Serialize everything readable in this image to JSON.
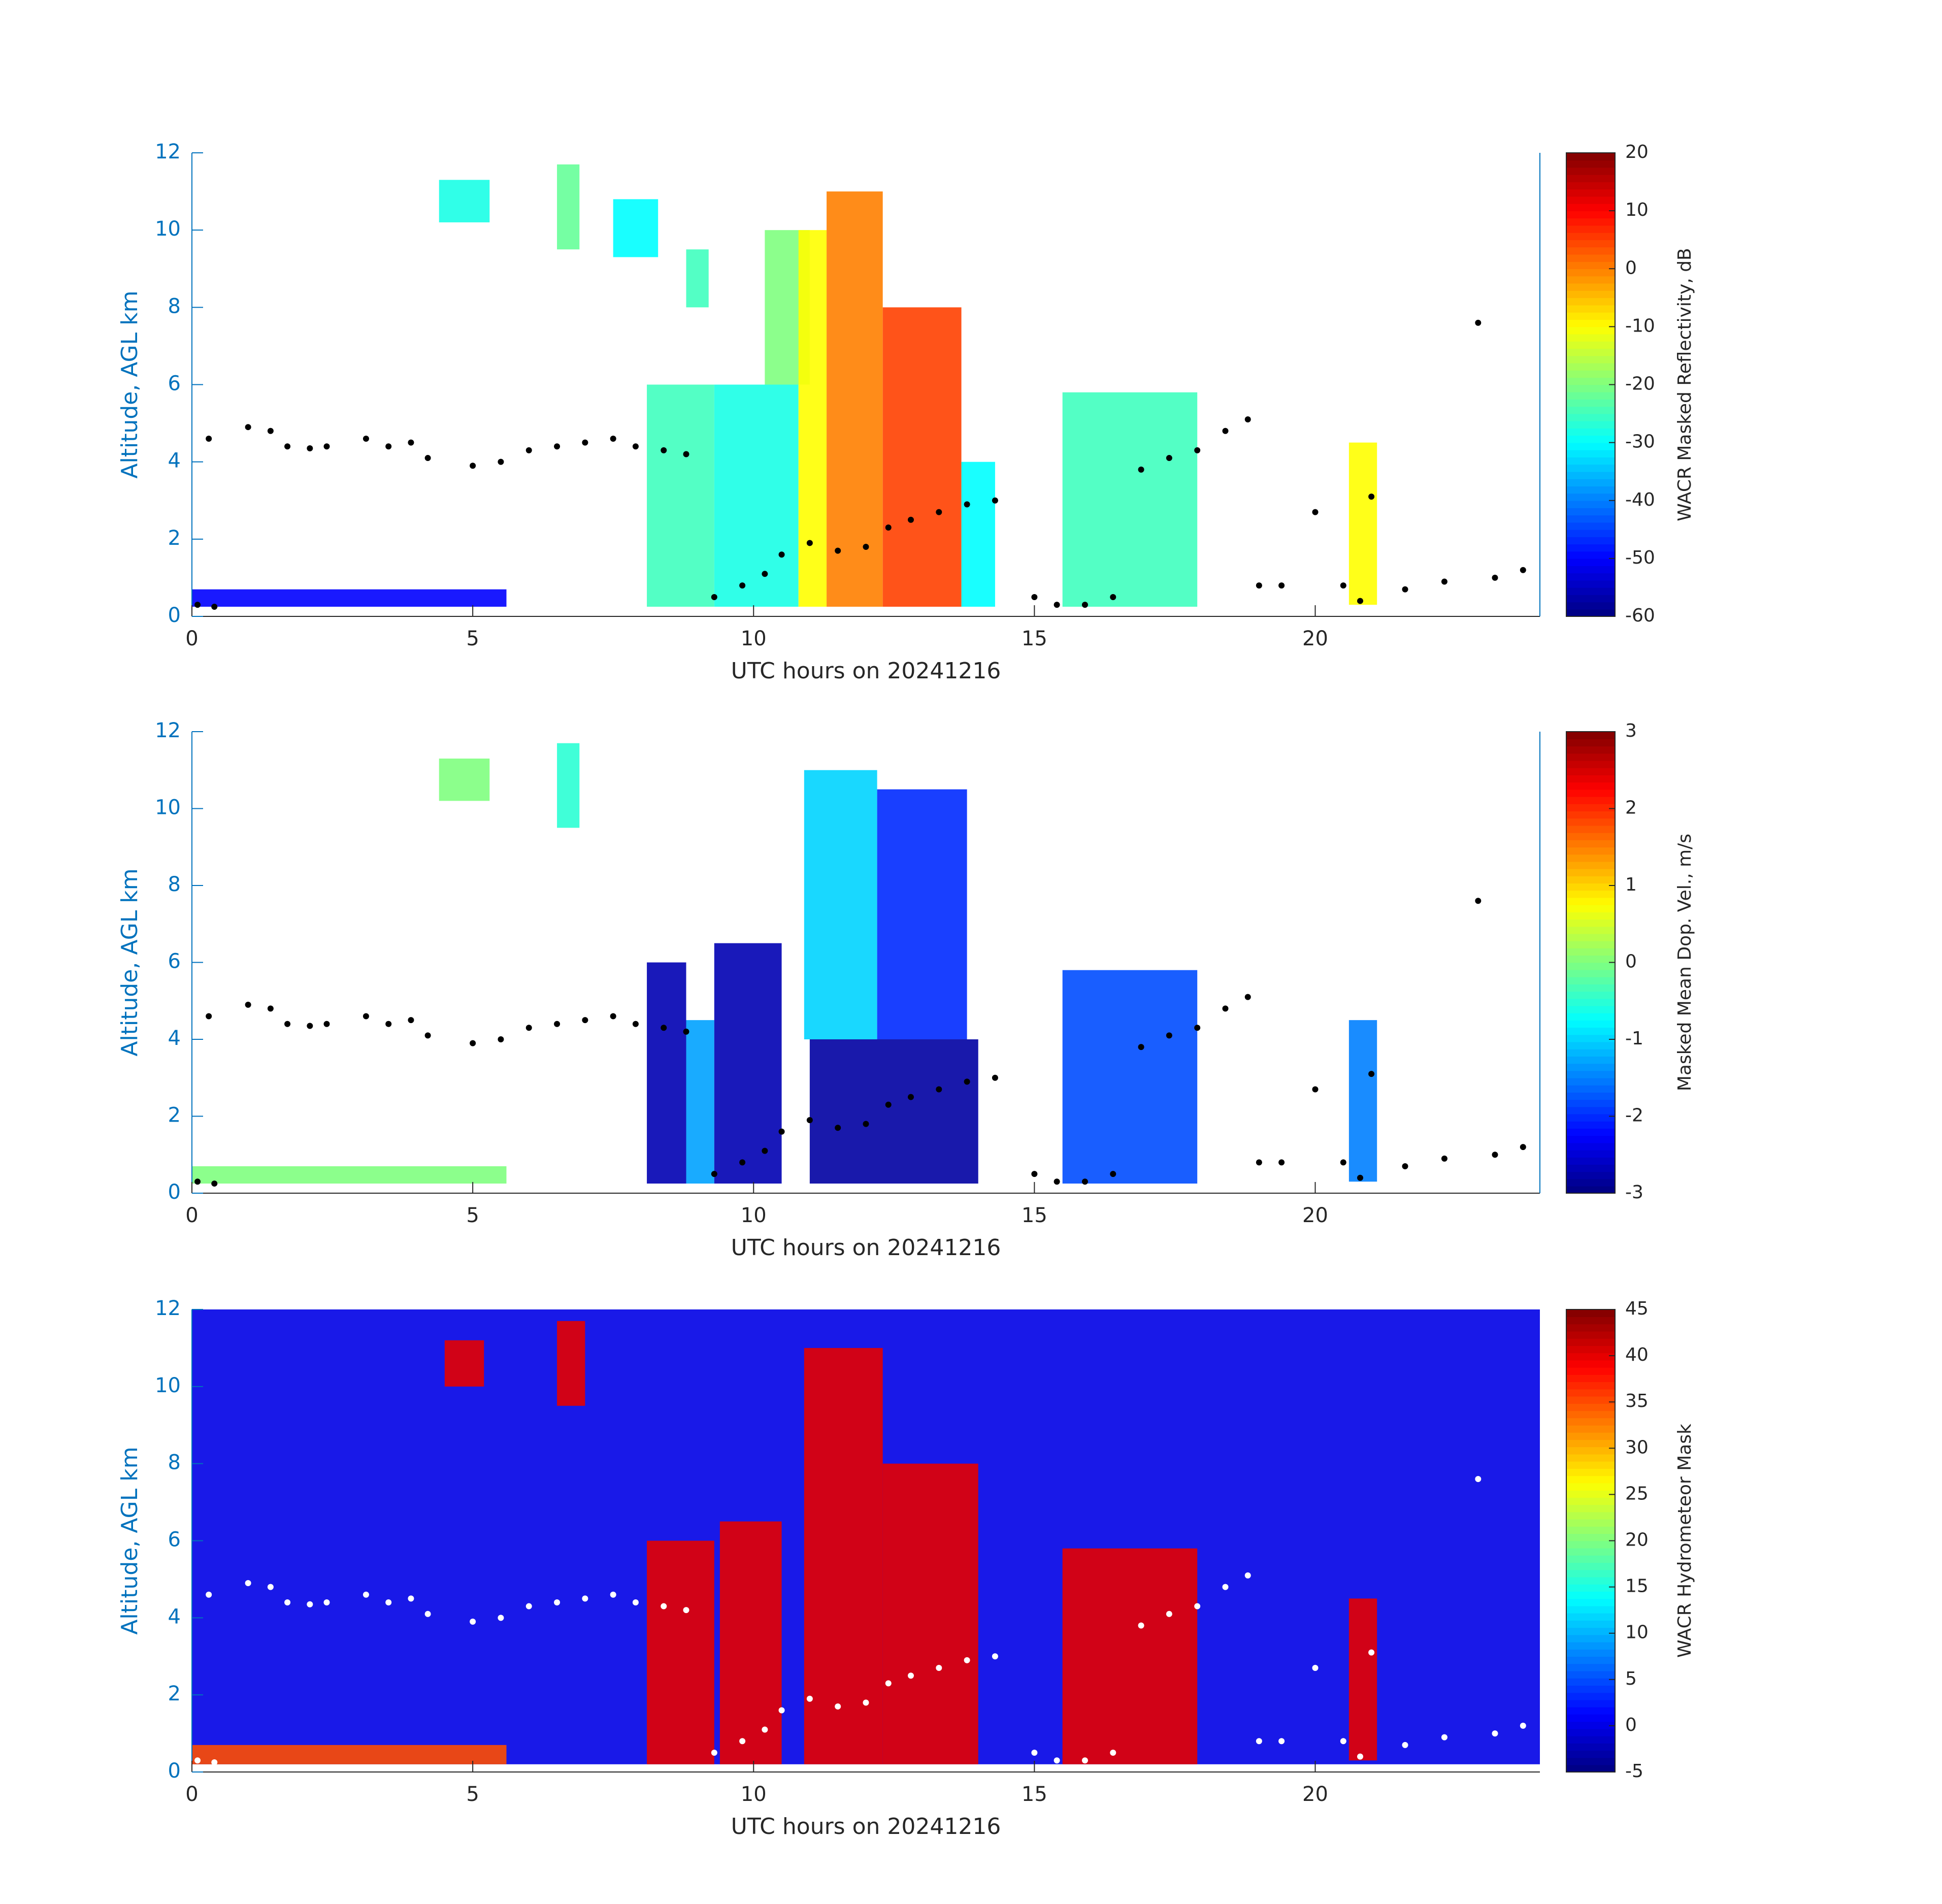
{
  "chart_data": [
    {
      "type": "heatmap",
      "colormap": "jet",
      "xlabel": "UTC hours on 20241216",
      "ylabel": "Altitude, AGL km",
      "clabel": "WACR Masked Reflectivity, dB",
      "xlim": [
        0,
        24
      ],
      "ylim": [
        0,
        12
      ],
      "xticks": [
        0,
        5,
        10,
        15,
        20
      ],
      "yticks": [
        0,
        2,
        4,
        6,
        8,
        10,
        12
      ],
      "clim": [
        -60,
        20
      ],
      "cticks": [
        -60,
        -50,
        -40,
        -30,
        -20,
        -10,
        0,
        10,
        20
      ],
      "y_axis_color": "#0072bd",
      "right_axis": true,
      "cells": [
        {
          "x": [
            0,
            5.6
          ],
          "y": [
            0.25,
            0.7
          ],
          "value": -50
        },
        {
          "x": [
            4.4,
            5.3
          ],
          "y": [
            10.2,
            11.3
          ],
          "value": -28
        },
        {
          "x": [
            6.5,
            6.9
          ],
          "y": [
            9.5,
            11.7
          ],
          "value": -22
        },
        {
          "x": [
            7.5,
            8.3
          ],
          "y": [
            9.3,
            10.8
          ],
          "value": -30
        },
        {
          "x": [
            8.8,
            9.2
          ],
          "y": [
            8,
            9.5
          ],
          "value": -25
        },
        {
          "x": [
            8.1,
            9.3
          ],
          "y": [
            0.25,
            6
          ],
          "value": -25
        },
        {
          "x": [
            9.3,
            10.8
          ],
          "y": [
            0.25,
            6
          ],
          "value": -28
        },
        {
          "x": [
            10.2,
            11
          ],
          "y": [
            6,
            10
          ],
          "value": -20
        },
        {
          "x": [
            10.8,
            11.3
          ],
          "y": [
            0.25,
            10
          ],
          "value": -10
        },
        {
          "x": [
            11.3,
            12.3
          ],
          "y": [
            0.25,
            11
          ],
          "value": 0
        },
        {
          "x": [
            12.3,
            13.7
          ],
          "y": [
            0.25,
            8
          ],
          "value": 5
        },
        {
          "x": [
            13.7,
            14.3
          ],
          "y": [
            0.25,
            4
          ],
          "value": -30
        },
        {
          "x": [
            15.5,
            17.9
          ],
          "y": [
            0.25,
            5.8
          ],
          "value": -25
        },
        {
          "x": [
            20.6,
            21.1
          ],
          "y": [
            0.3,
            4.5
          ],
          "value": -10
        }
      ],
      "points": {
        "color": "#000000",
        "x": [
          0.1,
          0.4,
          0.3,
          1,
          1.4,
          1.7,
          2.1,
          2.4,
          3.1,
          3.5,
          3.9,
          4.2,
          5,
          5.5,
          6,
          6.5,
          7,
          7.5,
          7.9,
          8.4,
          8.8,
          9.3,
          9.8,
          10.2,
          10.5,
          11,
          11.5,
          12,
          12.4,
          12.8,
          13.3,
          13.8,
          14.3,
          15,
          15.4,
          15.9,
          16.4,
          16.9,
          17.4,
          17.9,
          18.4,
          18.8,
          19,
          19.4,
          20,
          20.5,
          20.8,
          21,
          21.6,
          22.3,
          22.9,
          23.2,
          23.7
        ],
        "y": [
          0.3,
          0.25,
          4.6,
          4.9,
          4.8,
          4.4,
          4.35,
          4.4,
          4.6,
          4.4,
          4.5,
          4.1,
          3.9,
          4,
          4.3,
          4.4,
          4.5,
          4.6,
          4.4,
          4.3,
          4.2,
          0.5,
          0.8,
          1.1,
          1.6,
          1.9,
          1.7,
          1.8,
          2.3,
          2.5,
          2.7,
          2.9,
          3,
          0.5,
          0.3,
          0.3,
          0.5,
          3.8,
          4.1,
          4.3,
          4.8,
          5.1,
          0.8,
          0.8,
          2.7,
          0.8,
          0.4,
          3.1,
          0.7,
          0.9,
          7.6,
          1,
          1.2
        ]
      }
    },
    {
      "type": "heatmap",
      "colormap": "jet",
      "xlabel": "UTC hours on 20241216",
      "ylabel": "Altitude, AGL km",
      "clabel": "Masked Mean Dop. Vel., m/s",
      "xlim": [
        0,
        24
      ],
      "ylim": [
        0,
        12
      ],
      "xticks": [
        0,
        5,
        10,
        15,
        20
      ],
      "yticks": [
        0,
        2,
        4,
        6,
        8,
        10,
        12
      ],
      "clim": [
        -3,
        3
      ],
      "cticks": [
        -3,
        -2,
        -1,
        0,
        1,
        2,
        3
      ],
      "y_axis_color": "#0072bd",
      "right_axis": true,
      "cells": [
        {
          "x": [
            0,
            5.6
          ],
          "y": [
            0.25,
            0.7
          ],
          "value": 0
        },
        {
          "x": [
            4.4,
            5.3
          ],
          "y": [
            10.2,
            11.3
          ],
          "value": 0
        },
        {
          "x": [
            6.5,
            6.9
          ],
          "y": [
            9.5,
            11.7
          ],
          "value": -0.5
        },
        {
          "x": [
            8.1,
            8.8
          ],
          "y": [
            0.25,
            6
          ],
          "value": -2.7
        },
        {
          "x": [
            8.8,
            9.3
          ],
          "y": [
            0.25,
            4.5
          ],
          "value": -1.3
        },
        {
          "x": [
            9.3,
            10.5
          ],
          "y": [
            0.25,
            6.5
          ],
          "value": -2.7
        },
        {
          "x": [
            10.9,
            12.2
          ],
          "y": [
            4,
            11
          ],
          "value": -1
        },
        {
          "x": [
            12.2,
            13.8
          ],
          "y": [
            4,
            10.5
          ],
          "value": -2
        },
        {
          "x": [
            11,
            14
          ],
          "y": [
            0.25,
            4
          ],
          "value": -2.8
        },
        {
          "x": [
            15.5,
            17.9
          ],
          "y": [
            0.25,
            5.8
          ],
          "value": -1.8
        },
        {
          "x": [
            20.6,
            21.1
          ],
          "y": [
            0.3,
            4.5
          ],
          "value": -1.5
        }
      ],
      "points": {
        "color": "#000000",
        "x": [
          0.1,
          0.4,
          0.3,
          1,
          1.4,
          1.7,
          2.1,
          2.4,
          3.1,
          3.5,
          3.9,
          4.2,
          5,
          5.5,
          6,
          6.5,
          7,
          7.5,
          7.9,
          8.4,
          8.8,
          9.3,
          9.8,
          10.2,
          10.5,
          11,
          11.5,
          12,
          12.4,
          12.8,
          13.3,
          13.8,
          14.3,
          15,
          15.4,
          15.9,
          16.4,
          16.9,
          17.4,
          17.9,
          18.4,
          18.8,
          19,
          19.4,
          20,
          20.5,
          20.8,
          21,
          21.6,
          22.3,
          22.9,
          23.2,
          23.7
        ],
        "y": [
          0.3,
          0.25,
          4.6,
          4.9,
          4.8,
          4.4,
          4.35,
          4.4,
          4.6,
          4.4,
          4.5,
          4.1,
          3.9,
          4,
          4.3,
          4.4,
          4.5,
          4.6,
          4.4,
          4.3,
          4.2,
          0.5,
          0.8,
          1.1,
          1.6,
          1.9,
          1.7,
          1.8,
          2.3,
          2.5,
          2.7,
          2.9,
          3,
          0.5,
          0.3,
          0.3,
          0.5,
          3.8,
          4.1,
          4.3,
          4.8,
          5.1,
          0.8,
          0.8,
          2.7,
          0.8,
          0.4,
          3.1,
          0.7,
          0.9,
          7.6,
          1,
          1.2
        ]
      }
    },
    {
      "type": "heatmap",
      "colormap": "jet",
      "xlabel": "UTC hours on 20241216",
      "ylabel": "Altitude, AGL km",
      "clabel": "WACR Hydrometeor Mask",
      "xlim": [
        0,
        24
      ],
      "ylim": [
        0,
        12
      ],
      "xticks": [
        0,
        5,
        10,
        15,
        20
      ],
      "yticks": [
        0,
        2,
        4,
        6,
        8,
        10,
        12
      ],
      "clim": [
        -5,
        45
      ],
      "cticks": [
        -5,
        0,
        5,
        10,
        15,
        20,
        25,
        30,
        35,
        40,
        45
      ],
      "y_axis_color": "#0072bd",
      "right_axis": false,
      "cells": [
        {
          "x": [
            0,
            24
          ],
          "y": [
            0.2,
            12
          ],
          "value": 0
        },
        {
          "x": [
            0,
            5.6
          ],
          "y": [
            0.2,
            0.7
          ],
          "value": 35
        },
        {
          "x": [
            4.5,
            5.2
          ],
          "y": [
            10,
            11.2
          ],
          "value": 40
        },
        {
          "x": [
            6.5,
            7
          ],
          "y": [
            9.5,
            11.7
          ],
          "value": 40
        },
        {
          "x": [
            8.1,
            9.3
          ],
          "y": [
            0.2,
            6
          ],
          "value": 40
        },
        {
          "x": [
            9.4,
            10.5
          ],
          "y": [
            0.2,
            6.5
          ],
          "value": 40
        },
        {
          "x": [
            10.9,
            12.3
          ],
          "y": [
            0.2,
            11
          ],
          "value": 40
        },
        {
          "x": [
            12.3,
            14
          ],
          "y": [
            0.2,
            8
          ],
          "value": 40
        },
        {
          "x": [
            15.5,
            17.9
          ],
          "y": [
            0.2,
            5.8
          ],
          "value": 40
        },
        {
          "x": [
            20.6,
            21.1
          ],
          "y": [
            0.3,
            4.5
          ],
          "value": 40
        }
      ],
      "points": {
        "color": "#ffffff",
        "x": [
          0.1,
          0.4,
          0.3,
          1,
          1.4,
          1.7,
          2.1,
          2.4,
          3.1,
          3.5,
          3.9,
          4.2,
          5,
          5.5,
          6,
          6.5,
          7,
          7.5,
          7.9,
          8.4,
          8.8,
          9.3,
          9.8,
          10.2,
          10.5,
          11,
          11.5,
          12,
          12.4,
          12.8,
          13.3,
          13.8,
          14.3,
          15,
          15.4,
          15.9,
          16.4,
          16.9,
          17.4,
          17.9,
          18.4,
          18.8,
          19,
          19.4,
          20,
          20.5,
          20.8,
          21,
          21.6,
          22.3,
          22.9,
          23.2,
          23.7
        ],
        "y": [
          0.3,
          0.25,
          4.6,
          4.9,
          4.8,
          4.4,
          4.35,
          4.4,
          4.6,
          4.4,
          4.5,
          4.1,
          3.9,
          4,
          4.3,
          4.4,
          4.5,
          4.6,
          4.4,
          4.3,
          4.2,
          0.5,
          0.8,
          1.1,
          1.6,
          1.9,
          1.7,
          1.8,
          2.3,
          2.5,
          2.7,
          2.9,
          3,
          0.5,
          0.3,
          0.3,
          0.5,
          3.8,
          4.1,
          4.3,
          4.8,
          5.1,
          0.8,
          0.8,
          2.7,
          0.8,
          0.4,
          3.1,
          0.7,
          0.9,
          7.6,
          1,
          1.2
        ]
      }
    }
  ]
}
